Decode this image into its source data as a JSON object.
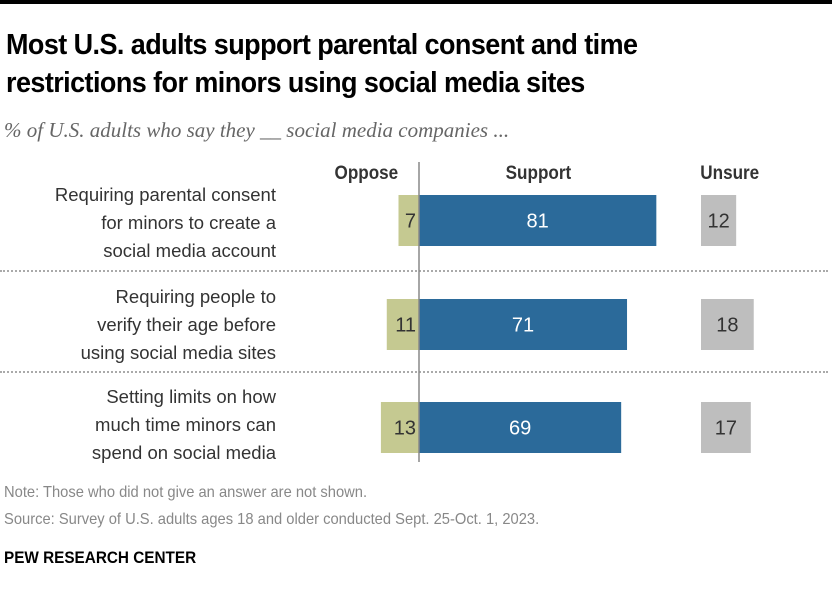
{
  "title": "Most U.S. adults support parental consent and time restrictions for minors using social media sites",
  "subtitle": "% of U.S. adults who say they __ social media companies ...",
  "note": "Note: Those who did not give an answer are not shown.",
  "source": "Source: Survey of U.S. adults ages 18 and older conducted Sept. 25-Oct. 1, 2023.",
  "brand": "PEW RESEARCH CENTER",
  "colors": {
    "oppose": "#c5c991",
    "support": "#2b6a9a",
    "unsure": "#bebebe",
    "axis": "#888888"
  },
  "chart_data": {
    "type": "bar",
    "orientation": "horizontal",
    "stacked": "diverging",
    "title": "Most U.S. adults support parental consent and time restrictions for minors using social media sites",
    "subtitle": "% of U.S. adults who say they __ social media companies ...",
    "column_headers": [
      "Oppose",
      "Support",
      "Unsure"
    ],
    "categories": [
      "Requiring parental consent for minors to create a social media account",
      "Requiring people to verify their age before using social media sites",
      "Setting limits on how much time minors can spend on social media"
    ],
    "category_lines": [
      [
        "Requiring parental consent",
        "for minors to create a",
        "social media account"
      ],
      [
        "Requiring people to",
        "verify their age before",
        "using social media sites"
      ],
      [
        "Setting limits on how",
        "much time minors can",
        "spend on social media"
      ]
    ],
    "series": [
      {
        "name": "Oppose",
        "values": [
          7,
          11,
          13
        ]
      },
      {
        "name": "Support",
        "values": [
          81,
          71,
          69
        ]
      },
      {
        "name": "Unsure",
        "values": [
          12,
          18,
          17
        ]
      }
    ],
    "units": "%",
    "legend": "column headers at top",
    "grid": false
  }
}
